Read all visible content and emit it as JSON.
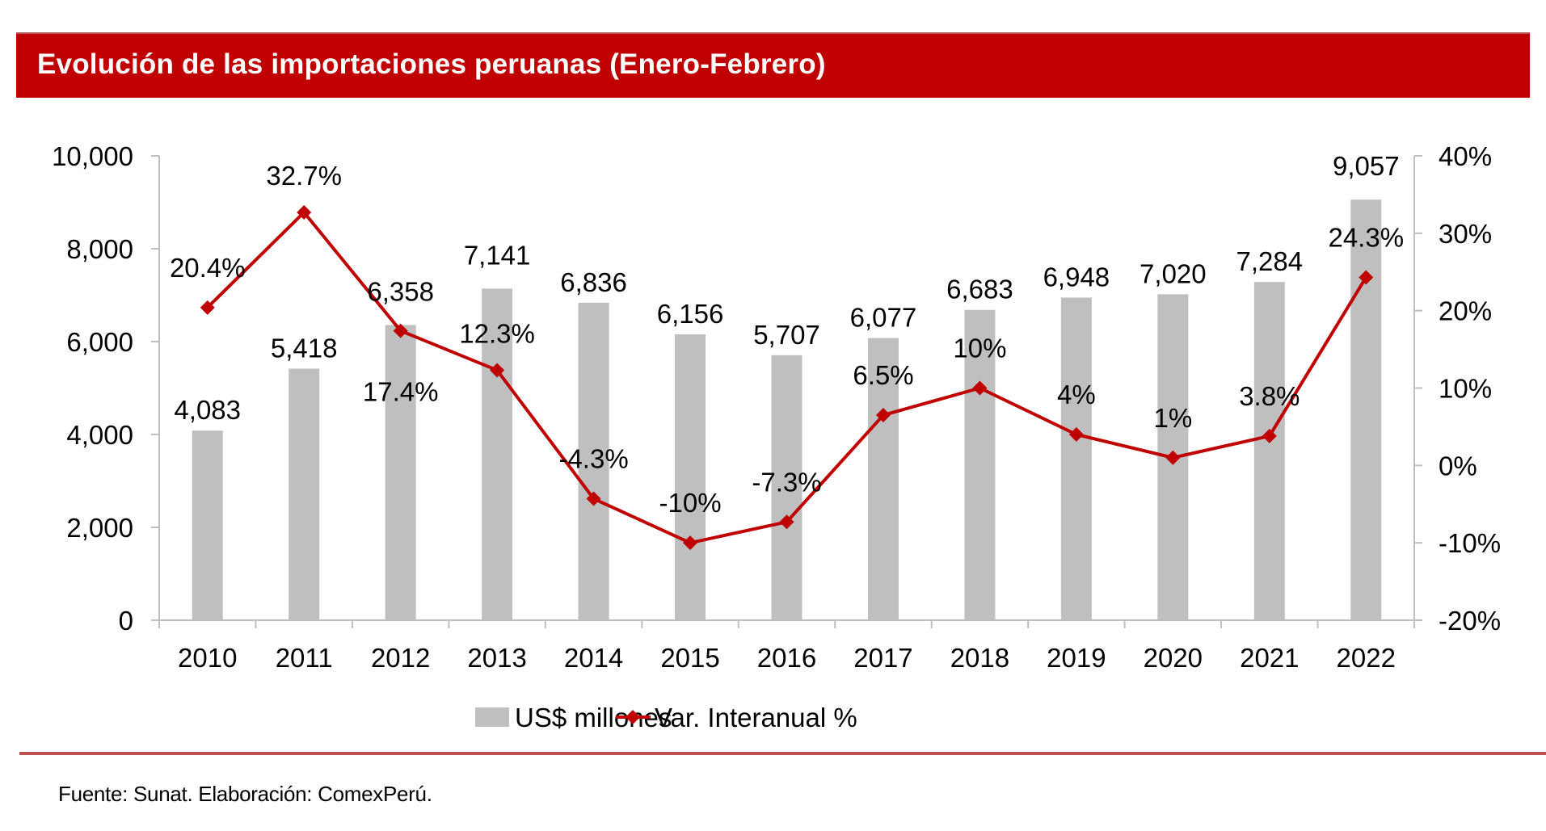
{
  "header": {
    "title": "Evolución de las importaciones peruanas (Enero-Febrero)"
  },
  "footer": {
    "source": "Fuente: Sunat. Elaboración: ComexPerú."
  },
  "colors": {
    "title_bar": "#C00000",
    "bar": "#BFBFBF",
    "line": "#C00000",
    "separator": "#C0504D",
    "axis": "#BFBFBF"
  },
  "chart_data": {
    "type": "bar+line",
    "title": "Evolución de las importaciones peruanas (Enero-Febrero)",
    "categories": [
      "2010",
      "2011",
      "2012",
      "2013",
      "2014",
      "2015",
      "2016",
      "2017",
      "2018",
      "2019",
      "2020",
      "2021",
      "2022"
    ],
    "series": [
      {
        "name": "US$ millones",
        "type": "bar",
        "axis": "left",
        "values": [
          4083,
          5418,
          6358,
          7141,
          6836,
          6156,
          5707,
          6077,
          6683,
          6948,
          7020,
          7284,
          9057
        ],
        "labels": [
          "4,083",
          "5,418",
          "6,358",
          "7,141",
          "6,836",
          "6,156",
          "5,707",
          "6,077",
          "6,683",
          "6,948",
          "7,020",
          "7,284",
          "9,057"
        ]
      },
      {
        "name": "Var. Interanual %",
        "type": "line",
        "marker": "diamond",
        "axis": "right",
        "values": [
          20.4,
          32.7,
          17.4,
          12.3,
          -4.3,
          -10,
          -7.3,
          6.5,
          10,
          4,
          1,
          3.8,
          24.3
        ],
        "labels": [
          "20.4%",
          "32.7%",
          "17.4%",
          "12.3%",
          "-4.3%",
          "-10%",
          "-7.3%",
          "6.5%",
          "10%",
          "4%",
          "1%",
          "3.8%",
          "24.3%"
        ]
      }
    ],
    "left_axis": {
      "ylim": [
        0,
        10000
      ],
      "ticks": [
        0,
        2000,
        4000,
        6000,
        8000,
        10000
      ],
      "tick_labels": [
        "0",
        "2,000",
        "4,000",
        "6,000",
        "8,000",
        "10,000"
      ]
    },
    "right_axis": {
      "ylim": [
        -20,
        40
      ],
      "ticks": [
        -20,
        -10,
        0,
        10,
        20,
        30,
        40
      ],
      "tick_labels": [
        "-20%",
        "-10%",
        "0%",
        "10%",
        "20%",
        "30%",
        "40%"
      ]
    },
    "xlabel": "",
    "ylabel": "",
    "grid": false,
    "legend": {
      "position": "bottom",
      "entries": [
        "US$ millones",
        "Var. Interanual %"
      ]
    }
  }
}
